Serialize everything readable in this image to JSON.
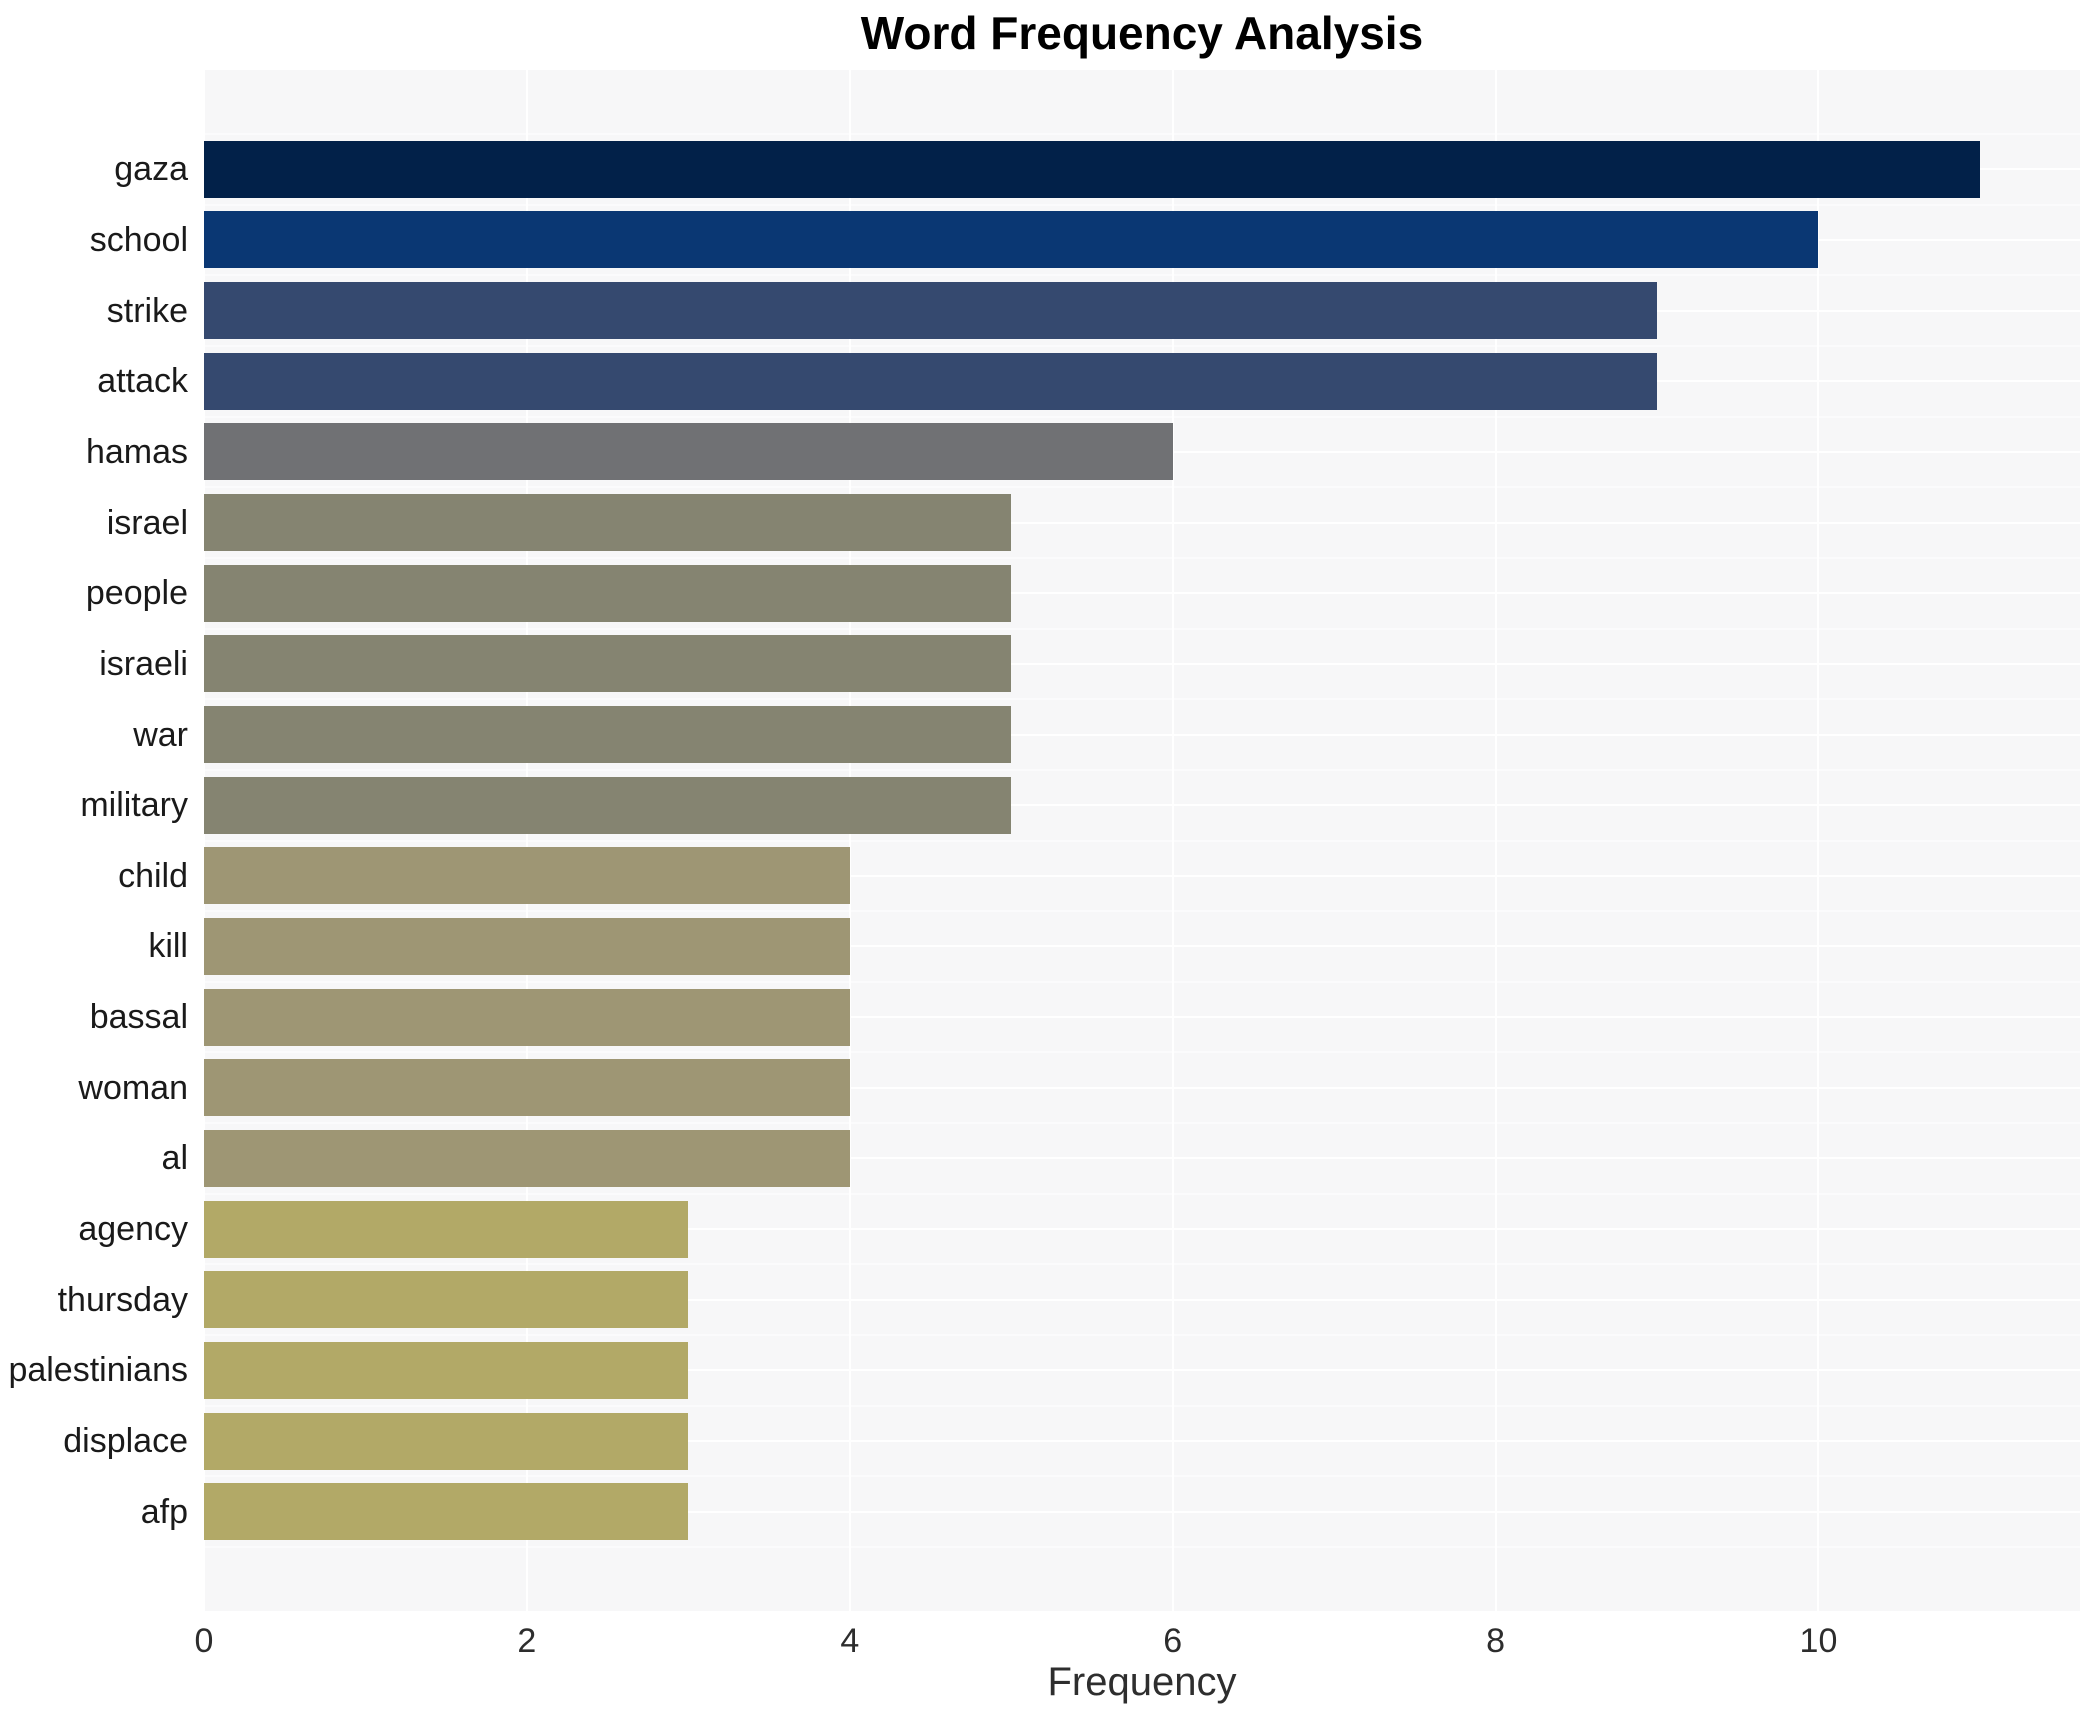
{
  "chart_data": {
    "type": "bar",
    "orientation": "horizontal",
    "title": "Word Frequency Analysis",
    "xlabel": "Frequency",
    "ylabel": "",
    "categories": [
      "gaza",
      "school",
      "strike",
      "attack",
      "hamas",
      "israel",
      "people",
      "israeli",
      "war",
      "military",
      "child",
      "kill",
      "bassal",
      "woman",
      "al",
      "agency",
      "thursday",
      "palestinians",
      "displace",
      "afp"
    ],
    "values": [
      11,
      10,
      9,
      9,
      6,
      5,
      5,
      5,
      5,
      5,
      4,
      4,
      4,
      4,
      4,
      3,
      3,
      3,
      3,
      3
    ],
    "bar_colors": [
      "#022149",
      "#0a3773",
      "#35496f",
      "#35496f",
      "#707174",
      "#858471",
      "#858471",
      "#858471",
      "#858471",
      "#858471",
      "#9e9674",
      "#9e9674",
      "#9e9674",
      "#9e9674",
      "#9e9674",
      "#b2a967",
      "#b2a967",
      "#b2a967",
      "#b2a967",
      "#b2a967"
    ],
    "x_ticks": [
      "0",
      "2",
      "4",
      "6",
      "8",
      "10"
    ],
    "x_tick_values": [
      0,
      2,
      4,
      6,
      8,
      10
    ],
    "xlim": [
      0,
      11.62
    ],
    "grid": true,
    "legend": false,
    "plot_bg": "#f7f7f8",
    "figure_bg": "#ffffff",
    "gridline_color": "#ffffff"
  }
}
